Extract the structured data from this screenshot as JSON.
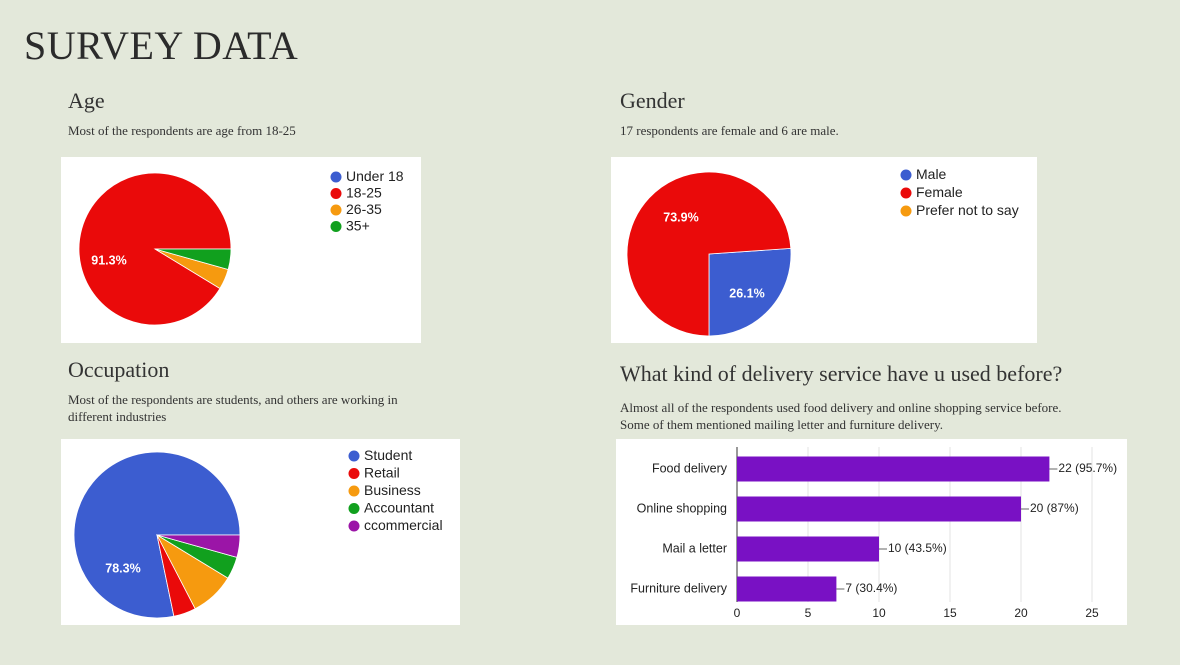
{
  "slide": {
    "title": "SURVEY DATA"
  },
  "sections": {
    "age": {
      "heading": "Age",
      "description": "Most of the respondents are age from 18-25"
    },
    "gender": {
      "heading": "Gender",
      "description": "17 respondents are female and 6 are male."
    },
    "occupation": {
      "heading": "Occupation",
      "description_line1": "Most of the respondents are students, and others are working in",
      "description_line2": "different industries"
    },
    "delivery": {
      "heading": "What kind of delivery service have u used before?",
      "description_line1": "Almost all of the respondents used food delivery and online shopping service before.",
      "description_line2": "Some of them mentioned mailing letter and furniture delivery."
    }
  },
  "colors": {
    "blue": "#3c5dd0",
    "red": "#ea0a0a",
    "orange": "#f69a0f",
    "green": "#11a01e",
    "purple": "#9b15a7",
    "bar_purple": "#7911c4"
  },
  "chart_data": [
    {
      "id": "age",
      "type": "pie",
      "labels": [
        "Under 18",
        "18-25",
        "26-35",
        "35+"
      ],
      "values": [
        0,
        21,
        1,
        1
      ],
      "percent_labels": [
        "",
        "91.3%",
        "",
        ""
      ],
      "colors": [
        "#3c5dd0",
        "#ea0a0a",
        "#f69a0f",
        "#11a01e"
      ],
      "legend": "right"
    },
    {
      "id": "gender",
      "type": "pie",
      "labels": [
        "Male",
        "Female",
        "Prefer not to say"
      ],
      "values": [
        6,
        17,
        0
      ],
      "percent_labels": [
        "26.1%",
        "73.9%",
        ""
      ],
      "colors": [
        "#3c5dd0",
        "#ea0a0a",
        "#f69a0f"
      ],
      "legend": "right"
    },
    {
      "id": "occupation",
      "type": "pie",
      "labels": [
        "Student",
        "Retail",
        "Business",
        "Accountant",
        "ccommercial"
      ],
      "values": [
        18,
        1,
        2,
        1,
        1
      ],
      "percent_labels": [
        "78.3%",
        "",
        "",
        "",
        ""
      ],
      "colors": [
        "#3c5dd0",
        "#ea0a0a",
        "#f69a0f",
        "#11a01e",
        "#9b15a7"
      ],
      "legend": "right"
    },
    {
      "id": "delivery",
      "type": "bar",
      "orientation": "horizontal",
      "categories": [
        "Food delivery",
        "Online shopping",
        "Mail a letter",
        "Furniture delivery"
      ],
      "values": [
        22,
        20,
        10,
        7
      ],
      "value_labels": [
        "22 (95.7%)",
        "20 (87%)",
        "10 (43.5%)",
        "7 (30.4%)"
      ],
      "xticks": [
        "0",
        "5",
        "10",
        "15",
        "20",
        "25"
      ],
      "xlim": [
        0,
        25
      ],
      "color": "#7911c4",
      "grid": true
    }
  ]
}
